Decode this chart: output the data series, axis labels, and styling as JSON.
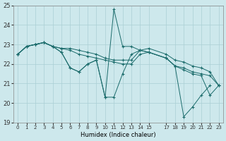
{
  "xlabel": "Humidex (Indice chaleur)",
  "xlim": [
    -0.5,
    23.5
  ],
  "ylim": [
    19,
    25
  ],
  "yticks": [
    19,
    20,
    21,
    22,
    23,
    24,
    25
  ],
  "xticks": [
    0,
    1,
    2,
    3,
    4,
    5,
    6,
    7,
    8,
    9,
    10,
    11,
    12,
    13,
    14,
    15,
    17,
    18,
    19,
    20,
    21,
    22,
    23
  ],
  "background_color": "#cde8ec",
  "grid_color": "#aacfd4",
  "line_color": "#1a6b6b",
  "series": [
    {
      "x": [
        0,
        1,
        2,
        3,
        4,
        5,
        6,
        7,
        8,
        9,
        10,
        11,
        12,
        13,
        14,
        15,
        17,
        18,
        19,
        20,
        21,
        22,
        23
      ],
      "y": [
        22.5,
        22.9,
        23.0,
        23.1,
        22.9,
        22.8,
        22.8,
        22.7,
        22.6,
        22.5,
        22.3,
        22.2,
        22.2,
        22.2,
        22.7,
        22.8,
        22.5,
        22.2,
        22.1,
        21.9,
        21.8,
        21.6,
        20.9
      ]
    },
    {
      "x": [
        0,
        1,
        2,
        3,
        4,
        5,
        6,
        7,
        8,
        9,
        10,
        11,
        12,
        13,
        14,
        15,
        17,
        18,
        19,
        20,
        21,
        22,
        23
      ],
      "y": [
        22.5,
        22.9,
        23.0,
        23.1,
        22.9,
        22.8,
        22.7,
        22.5,
        22.4,
        22.3,
        22.2,
        22.1,
        22.0,
        22.0,
        22.5,
        22.6,
        22.3,
        21.9,
        21.8,
        21.6,
        21.5,
        21.4,
        20.9
      ]
    },
    {
      "x": [
        0,
        1,
        2,
        3,
        4,
        5,
        6,
        7,
        8,
        9,
        10,
        11,
        12,
        13,
        14,
        15,
        17,
        18,
        19,
        20,
        21,
        22,
        23
      ],
      "y": [
        22.5,
        22.9,
        23.0,
        23.1,
        22.9,
        22.6,
        21.8,
        21.6,
        22.0,
        22.2,
        20.3,
        20.3,
        21.5,
        22.5,
        22.7,
        22.6,
        22.3,
        21.9,
        21.7,
        21.5,
        21.4,
        20.4,
        20.9
      ]
    },
    {
      "x": [
        0,
        1,
        2,
        3,
        4,
        5,
        6,
        7,
        8,
        9,
        10,
        11,
        12,
        13,
        14,
        15,
        17,
        18,
        19,
        20,
        21,
        22
      ],
      "y": [
        22.5,
        22.9,
        23.0,
        23.1,
        22.9,
        22.6,
        21.8,
        21.6,
        22.0,
        22.2,
        20.3,
        24.8,
        22.9,
        22.9,
        22.7,
        22.6,
        22.3,
        21.9,
        19.3,
        19.8,
        20.4,
        20.9
      ]
    }
  ]
}
